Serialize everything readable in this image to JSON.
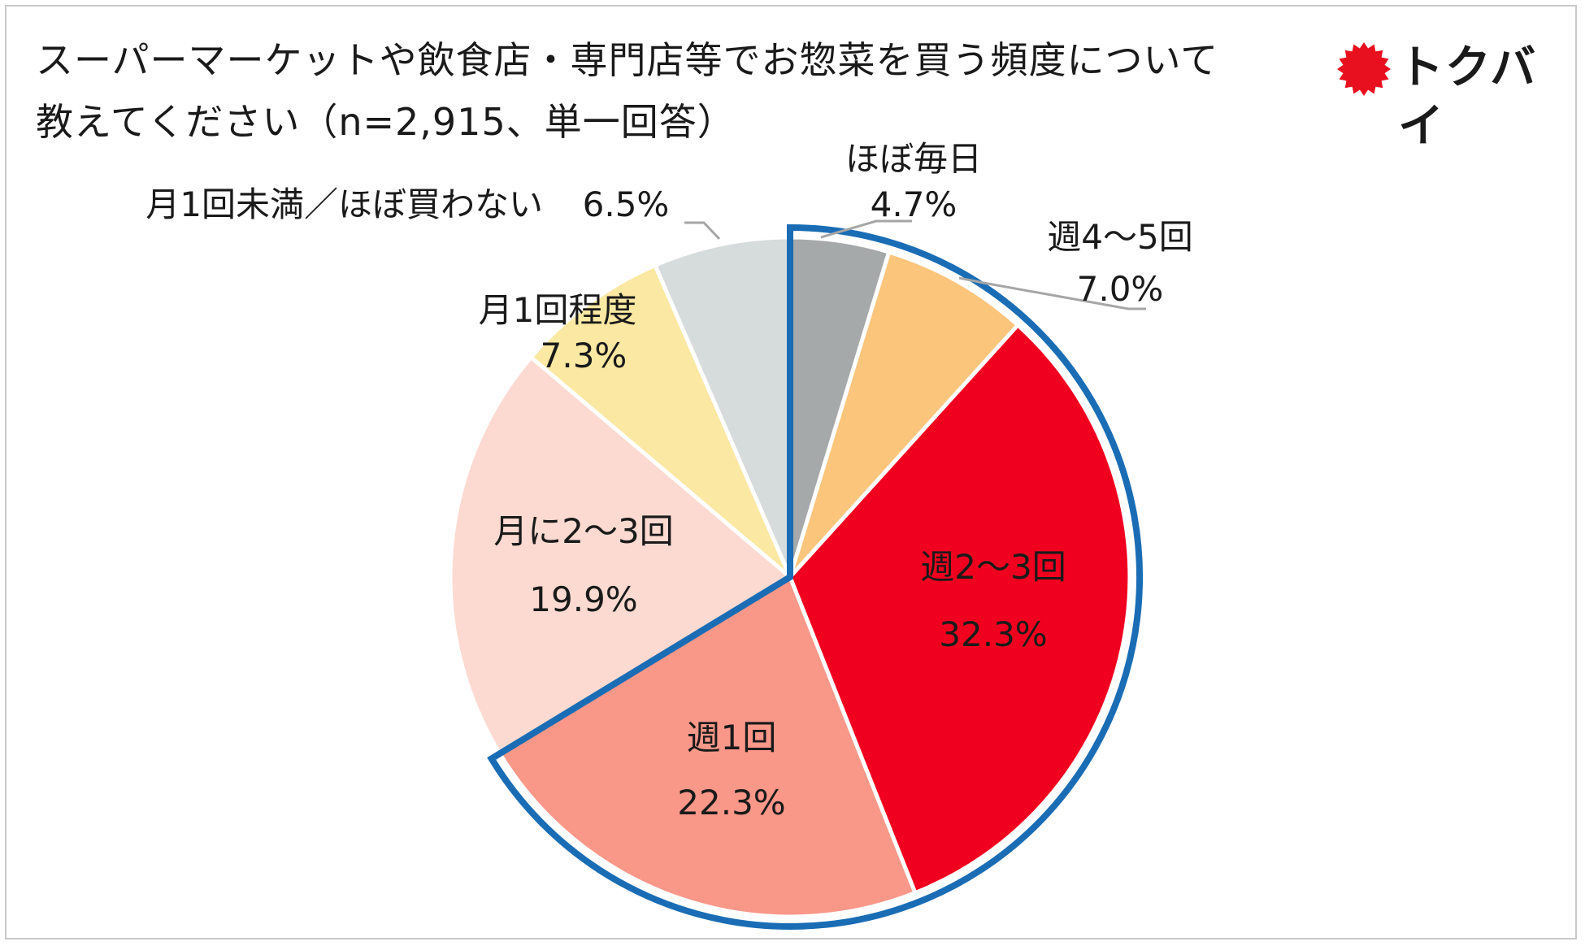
{
  "title_line1": "スーパーマーケットや飲食店・専門店等でお惣菜を買う頻度について",
  "title_line2": "教えてください（n=2,915、単一回答）",
  "logo": {
    "text": "トクバイ",
    "icon": "red-starburst-icon"
  },
  "colors": {
    "highlight_outline": "#1a6db5"
  },
  "chart_data": {
    "type": "pie",
    "title": "スーパーマーケットや飲食店・専門店等でお惣菜を買う頻度について教えてください（n=2,915、単一回答）",
    "unit": "%",
    "slices": [
      {
        "label": "ほぼ毎日",
        "value": 4.7,
        "value_label": "4.7%",
        "color": "#a6a9aa"
      },
      {
        "label": "週4～5回",
        "value": 7.0,
        "value_label": "7.0%",
        "color": "#fcc57c"
      },
      {
        "label": "週2～3回",
        "value": 32.3,
        "value_label": "32.3%",
        "color": "#f0001e"
      },
      {
        "label": "週1回",
        "value": 22.3,
        "value_label": "22.3%",
        "color": "#f99789"
      },
      {
        "label": "月に2～3回",
        "value": 19.9,
        "value_label": "19.9%",
        "color": "#fcdad1"
      },
      {
        "label": "月1回程度",
        "value": 7.3,
        "value_label": "7.3%",
        "color": "#fbe8a3"
      },
      {
        "label": "月1回未満／ほぼ買わない",
        "value": 6.5,
        "value_label": "6.5%",
        "color": "#d6dbdb"
      }
    ],
    "highlighted_slices": [
      "ほぼ毎日",
      "週4～5回",
      "週2～3回",
      "週1回"
    ],
    "legend": "none"
  }
}
